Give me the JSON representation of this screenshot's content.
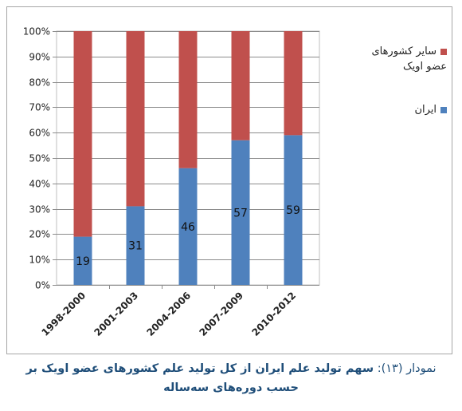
{
  "chart_data": {
    "type": "bar",
    "stacked": true,
    "categories": [
      "1998-2000",
      "2001-2003",
      "2004-2006",
      "2007-2009",
      "2010-2012"
    ],
    "series": [
      {
        "name": "ایران",
        "values": [
          19,
          31,
          46,
          57,
          59
        ],
        "color": "#4f81bd"
      },
      {
        "name": "سایر کشورهای عضو اویک",
        "values": [
          81,
          69,
          54,
          43,
          41
        ],
        "color": "#c0504d"
      }
    ],
    "data_labels": [
      "19",
      "31",
      "46",
      "57",
      "59"
    ],
    "yticks": [
      "0%",
      "10%",
      "20%",
      "30%",
      "40%",
      "50%",
      "60%",
      "70%",
      "80%",
      "90%",
      "100%"
    ],
    "ylim": [
      0,
      100
    ],
    "grid": true,
    "legend_position": "right"
  },
  "legend": {
    "others_line1": "سایر کشورهای",
    "others_line2": "عضو اویک",
    "iran": "ایران"
  },
  "caption": {
    "lead": "نمودار (۱۳):",
    "line1": "سهم تولید علم ایران از کل تولید علم کشورهای عضو اویک بر",
    "line2": "حسب دوره‌های سه‌ساله"
  }
}
